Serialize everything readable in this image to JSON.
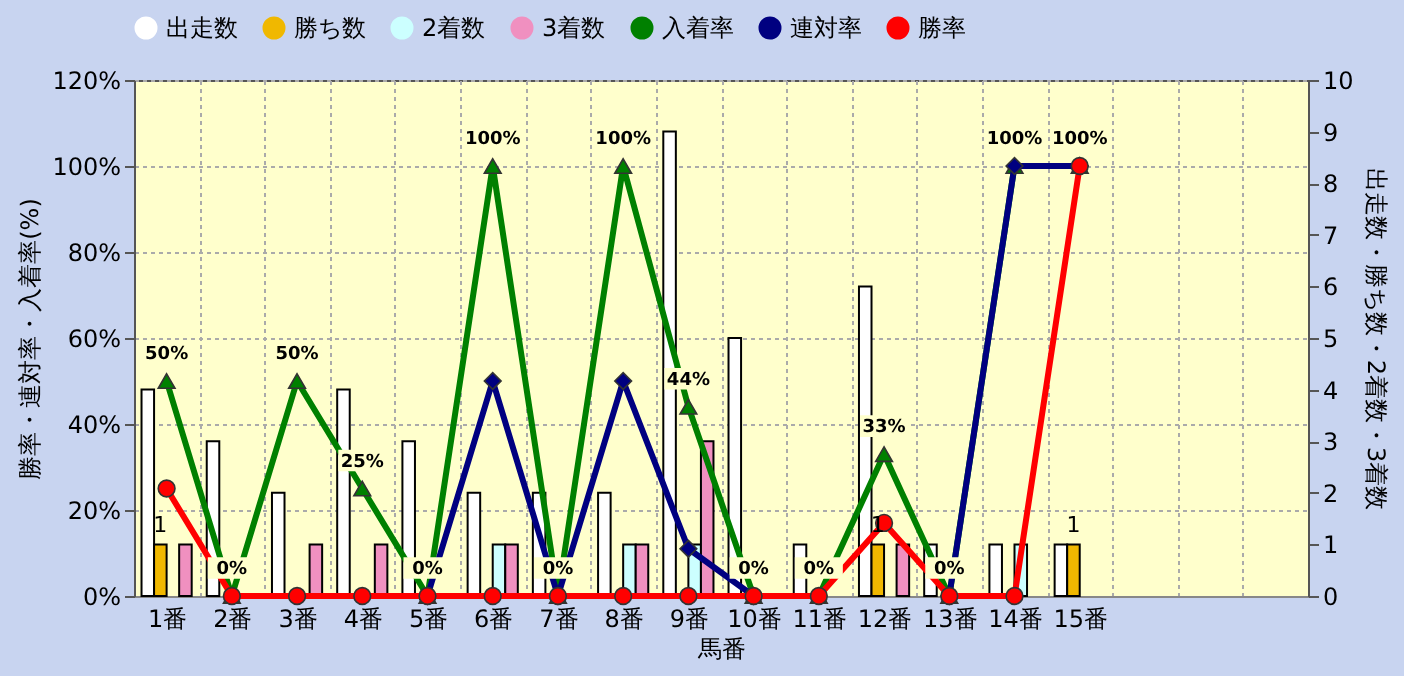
{
  "chart_data": {
    "type": "bar",
    "xlabel": "馬番",
    "ylabel": "勝率・連対率・入着率(%)",
    "y2label": "出走数・勝ち数・2着数・3着数",
    "categories": [
      "1番",
      "2番",
      "3番",
      "4番",
      "5番",
      "6番",
      "7番",
      "8番",
      "9番",
      "10番",
      "11番",
      "12番",
      "13番",
      "14番",
      "15番",
      null,
      null,
      null
    ],
    "series": [
      {
        "name": "出走数",
        "axis": "y2",
        "color": "#ffffff",
        "values": [
          4,
          3,
          2,
          4,
          3,
          2,
          2,
          2,
          9,
          5,
          1,
          6,
          1,
          1,
          1,
          null,
          null,
          null
        ]
      },
      {
        "name": "勝ち数",
        "axis": "y2",
        "color": "#f0b800",
        "values": [
          1,
          0,
          0,
          0,
          0,
          0,
          0,
          0,
          0,
          0,
          0,
          1,
          0,
          0,
          1,
          null,
          null,
          null
        ],
        "value_labels": [
          "1",
          null,
          null,
          null,
          null,
          null,
          null,
          null,
          null,
          null,
          null,
          "1",
          null,
          null,
          "1",
          null,
          null,
          null
        ]
      },
      {
        "name": "2着数",
        "axis": "y2",
        "color": "#ccffff",
        "values": [
          0,
          0,
          0,
          0,
          0,
          1,
          0,
          1,
          1,
          0,
          0,
          0,
          0,
          1,
          0,
          null,
          null,
          null
        ]
      },
      {
        "name": "3着数",
        "axis": "y2",
        "color": "#f090c0",
        "values": [
          1,
          0,
          1,
          1,
          0,
          1,
          0,
          1,
          3,
          0,
          0,
          1,
          0,
          0,
          0,
          null,
          null,
          null
        ]
      },
      {
        "name": "入着率",
        "type": "line",
        "color": "#008000",
        "marker": "triangle",
        "values": [
          50,
          0,
          50,
          25,
          0,
          100,
          0,
          100,
          44,
          0,
          0,
          33,
          0,
          100,
          100,
          null,
          null,
          null
        ],
        "value_labels": [
          "50%",
          "0%",
          "50%",
          "25%",
          "0%",
          "100%",
          "0%",
          "100%",
          "44%",
          "0%",
          "0%",
          "33%",
          "0%",
          "100%",
          "100%",
          null,
          null,
          null
        ]
      },
      {
        "name": "連対率",
        "type": "line",
        "color": "#000080",
        "marker": "diamond",
        "values": [
          null,
          null,
          null,
          null,
          0,
          50,
          0,
          50,
          11,
          0,
          null,
          null,
          0,
          100,
          100,
          null,
          null,
          null
        ]
      },
      {
        "name": "勝率",
        "type": "line",
        "color": "#ff0000",
        "marker": "circle",
        "values": [
          25,
          0,
          0,
          0,
          0,
          0,
          0,
          0,
          0,
          0,
          0,
          17,
          0,
          0,
          100,
          null,
          null,
          null
        ]
      }
    ],
    "ylim": [
      0,
      120
    ],
    "yticks": [
      {
        "value": 0,
        "label": "0%"
      },
      {
        "value": 20,
        "label": "20%"
      },
      {
        "value": 40,
        "label": "40%"
      },
      {
        "value": 60,
        "label": "60%"
      },
      {
        "value": 80,
        "label": "80%"
      },
      {
        "value": 100,
        "label": "100%"
      },
      {
        "value": 120,
        "label": "120%"
      }
    ],
    "y2lim": [
      0,
      10
    ],
    "y2ticks": [
      0,
      1,
      2,
      3,
      4,
      5,
      6,
      7,
      8,
      9,
      10
    ],
    "grid": true,
    "legend": "top",
    "line_style": "solid"
  }
}
